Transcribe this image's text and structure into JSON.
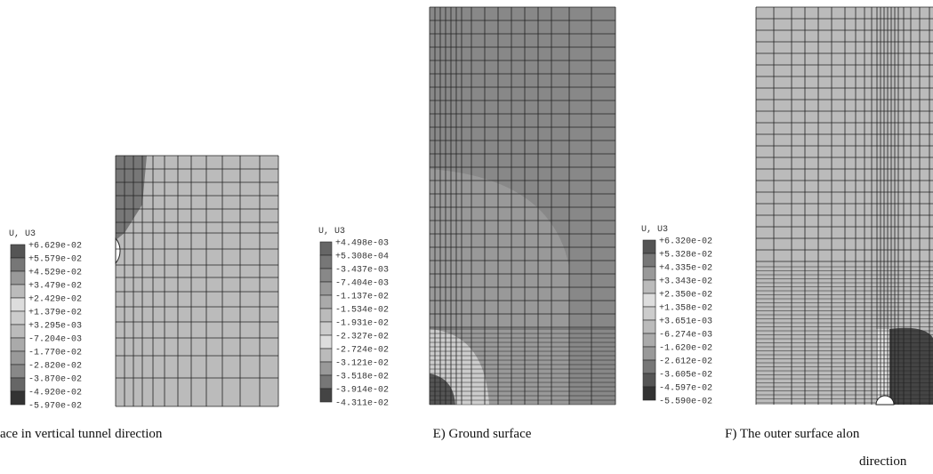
{
  "panels": [
    {
      "legend": {
        "title": "U, U3",
        "labels": [
          "+6.629e-02",
          "+5.579e-02",
          "+4.529e-02",
          "+3.479e-02",
          "+2.429e-02",
          "+1.379e-02",
          "+3.295e-03",
          "-7.204e-03",
          "-1.770e-02",
          "-2.820e-02",
          "-3.870e-02",
          "-4.920e-02",
          "-5.970e-02"
        ]
      },
      "caption": [
        "ace in vertical tunnel direction"
      ]
    },
    {
      "legend": {
        "title": "U, U3",
        "labels": [
          "+4.498e-03",
          "+5.308e-04",
          "-3.437e-03",
          "-7.404e-03",
          "-1.137e-02",
          "-1.534e-02",
          "-1.931e-02",
          "-2.327e-02",
          "-2.724e-02",
          "-3.121e-02",
          "-3.518e-02",
          "-3.914e-02",
          "-4.311e-02"
        ]
      },
      "caption": [
        "E) Ground surface"
      ]
    },
    {
      "legend": {
        "title": "U, U3",
        "labels": [
          "+6.320e-02",
          "+5.328e-02",
          "+4.335e-02",
          "+3.343e-02",
          "+2.350e-02",
          "+1.358e-02",
          "+3.651e-03",
          "-6.274e-03",
          "-1.620e-02",
          "-2.612e-02",
          "-3.605e-02",
          "-4.597e-02",
          "-5.590e-02"
        ]
      },
      "caption": [
        "F) The outer surface alon",
        "direction"
      ]
    }
  ]
}
